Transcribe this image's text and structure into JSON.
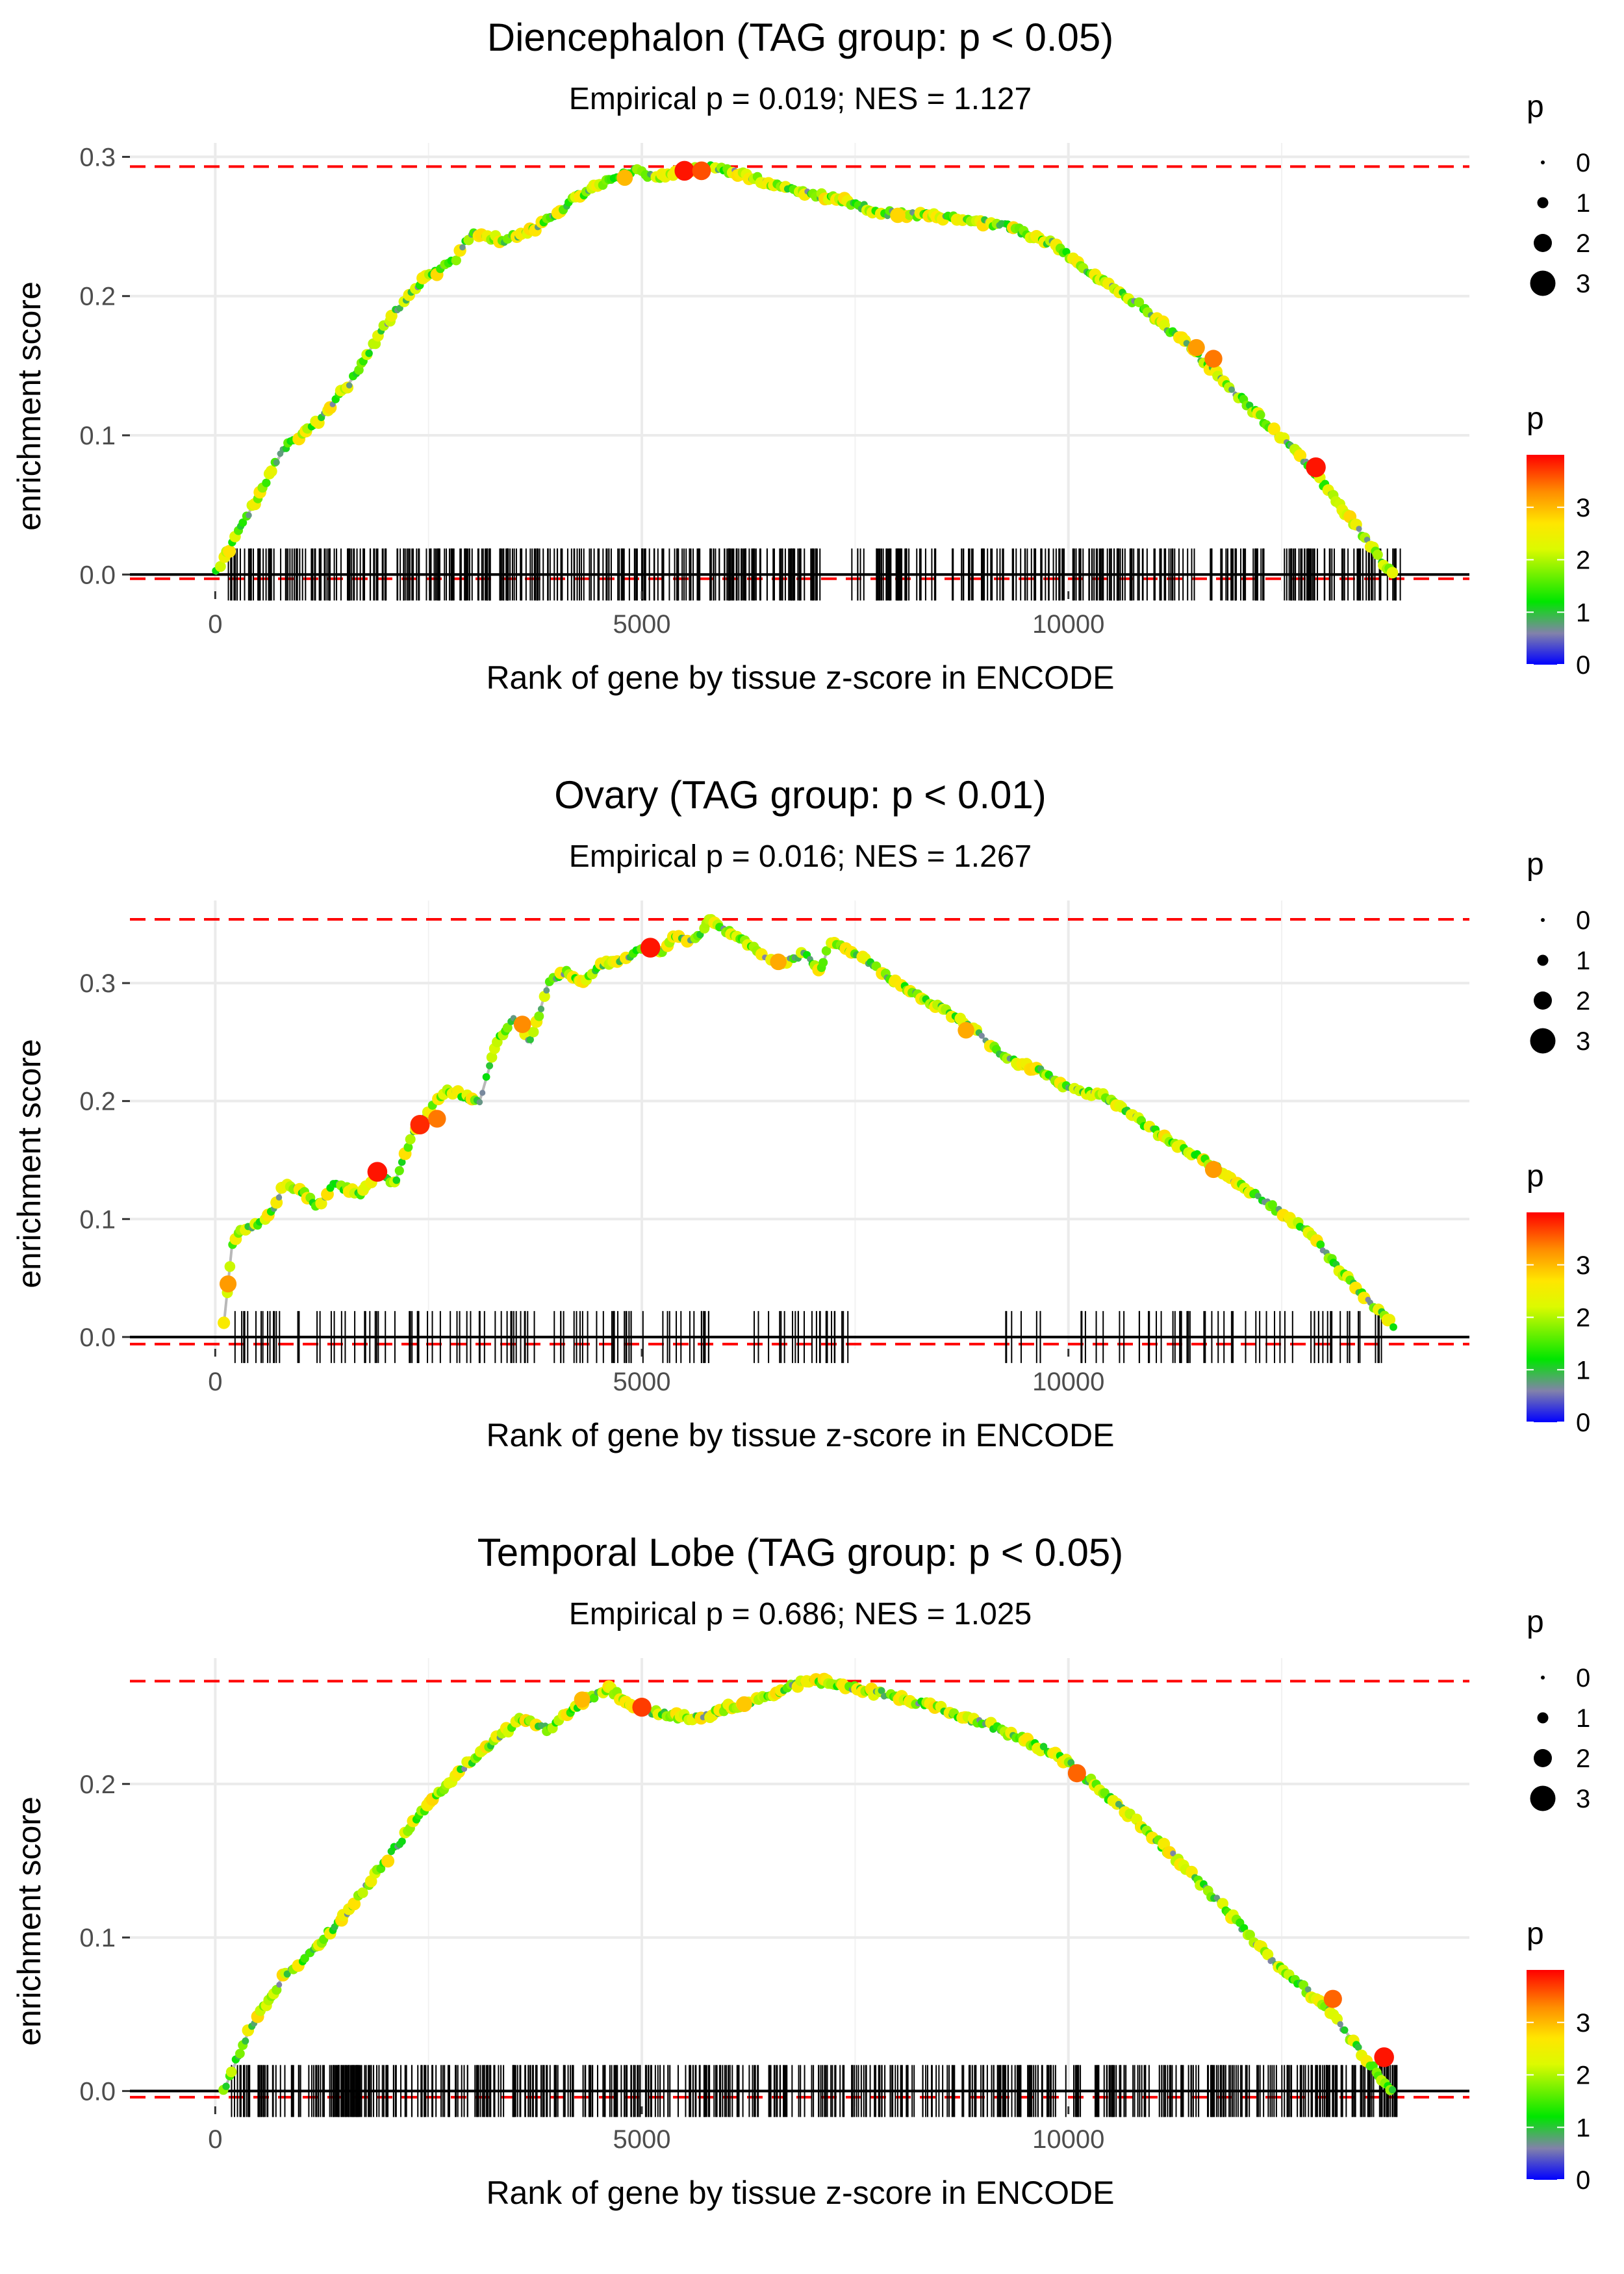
{
  "chart_data": [
    {
      "type": "line",
      "title": "Diencephalon (TAG group: p < 0.05)",
      "subtitle": "Empirical p = 0.019; NES = 1.127",
      "xlabel": "Rank of gene by tissue z-score in ENCODE",
      "ylabel": "enrichment score",
      "xlim": [
        -1000,
        14700
      ],
      "ylim": [
        -0.012,
        0.31
      ],
      "x_ticks": [
        0,
        5000,
        10000
      ],
      "x_tick_labels": [
        "0",
        "5000",
        "10000"
      ],
      "y_ticks": [
        0.0,
        0.1,
        0.2,
        0.3
      ],
      "y_tick_labels": [
        "0.0",
        "0.1",
        "0.2",
        "0.3"
      ],
      "grid": true,
      "max_es": 0.293,
      "min_es": -0.003,
      "curve_x": [
        0,
        400,
        800,
        1200,
        1600,
        2000,
        2400,
        2800,
        3000,
        3400,
        3800,
        4200,
        4600,
        4900,
        5200,
        5500,
        5800,
        6300,
        6800,
        7300,
        7800,
        8300,
        8800,
        9300,
        9800,
        10300,
        10800,
        11300,
        11800,
        12300,
        12800,
        13300,
        13800
      ],
      "curve_y": [
        0.0,
        0.045,
        0.09,
        0.11,
        0.14,
        0.18,
        0.21,
        0.225,
        0.245,
        0.24,
        0.25,
        0.27,
        0.283,
        0.29,
        0.285,
        0.29,
        0.293,
        0.285,
        0.275,
        0.27,
        0.26,
        0.258,
        0.255,
        0.25,
        0.238,
        0.215,
        0.195,
        0.17,
        0.14,
        0.11,
        0.08,
        0.04,
        0.0
      ],
      "highlight_points": [
        {
          "x": 5500,
          "y": 0.29,
          "p": 3.9
        },
        {
          "x": 5700,
          "y": 0.29,
          "p": 3.6
        },
        {
          "x": 4800,
          "y": 0.285,
          "p": 3.0
        },
        {
          "x": 11500,
          "y": 0.163,
          "p": 3.2
        },
        {
          "x": 11700,
          "y": 0.155,
          "p": 3.4
        },
        {
          "x": 12900,
          "y": 0.077,
          "p": 3.9
        },
        {
          "x": 8000,
          "y": 0.258,
          "p": 2.8
        }
      ],
      "rug": {
        "start": 150,
        "end": 13900,
        "count": 560,
        "gap_ranges": [
          [
            7200,
            7400
          ],
          [
            12300,
            12500
          ]
        ]
      },
      "legend_size": {
        "title": "p",
        "labels": [
          "0",
          "1",
          "2",
          "3"
        ]
      },
      "legend_color": {
        "title": "p",
        "labels": [
          "3",
          "2",
          "1",
          "0"
        ],
        "values": [
          3,
          2,
          1,
          0
        ],
        "range": [
          0,
          4
        ]
      }
    },
    {
      "type": "line",
      "title": "Ovary (TAG group: p < 0.01)",
      "subtitle": "Empirical p = 0.016; NES = 1.267",
      "xlabel": "Rank of gene by tissue z-score in ENCODE",
      "ylabel": "enrichment score",
      "xlim": [
        -1000,
        14700
      ],
      "ylim": [
        -0.01,
        0.37
      ],
      "x_ticks": [
        0,
        5000,
        10000
      ],
      "x_tick_labels": [
        "0",
        "5000",
        "10000"
      ],
      "y_ticks": [
        0.0,
        0.1,
        0.2,
        0.3
      ],
      "y_tick_labels": [
        "0.0",
        "0.1",
        "0.2",
        "0.3"
      ],
      "grid": true,
      "max_es": 0.354,
      "min_es": -0.006,
      "curve_x": [
        100,
        200,
        300,
        500,
        700,
        800,
        1000,
        1200,
        1400,
        1700,
        1900,
        2100,
        2300,
        2500,
        2700,
        3100,
        3300,
        3500,
        3700,
        3900,
        4100,
        4300,
        4500,
        4800,
        5000,
        5200,
        5400,
        5600,
        5800,
        6300,
        6600,
        6900,
        7100,
        7200,
        7500,
        8000,
        8600,
        8900,
        9300,
        9700,
        10000,
        10400,
        10800,
        11200,
        11600,
        12000,
        12400,
        12800,
        13200,
        13600,
        13800
      ],
      "curve_y": [
        0.01,
        0.08,
        0.09,
        0.095,
        0.11,
        0.13,
        0.125,
        0.11,
        0.13,
        0.12,
        0.14,
        0.13,
        0.17,
        0.19,
        0.21,
        0.2,
        0.25,
        0.27,
        0.25,
        0.3,
        0.31,
        0.3,
        0.315,
        0.32,
        0.33,
        0.325,
        0.34,
        0.335,
        0.354,
        0.33,
        0.315,
        0.325,
        0.31,
        0.335,
        0.325,
        0.3,
        0.275,
        0.26,
        0.235,
        0.225,
        0.21,
        0.205,
        0.185,
        0.165,
        0.15,
        0.13,
        0.11,
        0.09,
        0.055,
        0.025,
        0.01
      ],
      "highlight_points": [
        {
          "x": 150,
          "y": 0.045,
          "p": 3.2
        },
        {
          "x": 1900,
          "y": 0.14,
          "p": 3.9
        },
        {
          "x": 2400,
          "y": 0.18,
          "p": 3.8
        },
        {
          "x": 2600,
          "y": 0.185,
          "p": 3.4
        },
        {
          "x": 3600,
          "y": 0.265,
          "p": 3.3
        },
        {
          "x": 5100,
          "y": 0.33,
          "p": 3.9
        },
        {
          "x": 6600,
          "y": 0.318,
          "p": 3.1
        },
        {
          "x": 8800,
          "y": 0.26,
          "p": 3.1
        },
        {
          "x": 11700,
          "y": 0.142,
          "p": 3.2
        }
      ],
      "rug": {
        "start": 150,
        "end": 13700,
        "count": 190,
        "gap_ranges": [
          [
            5800,
            6300
          ],
          [
            7500,
            9100
          ],
          [
            9700,
            10100
          ]
        ]
      },
      "legend_size": {
        "title": "p",
        "labels": [
          "0",
          "1",
          "2",
          "3"
        ]
      },
      "legend_color": {
        "title": "p",
        "labels": [
          "3",
          "2",
          "1",
          "0"
        ],
        "values": [
          3,
          2,
          1,
          0
        ],
        "range": [
          0,
          4
        ]
      }
    },
    {
      "type": "line",
      "title": "Temporal Lobe (TAG group: p < 0.05)",
      "subtitle": "Empirical p = 0.686; NES = 1.025",
      "xlabel": "Rank of gene by tissue z-score in ENCODE",
      "ylabel": "enrichment score",
      "xlim": [
        -1000,
        14700
      ],
      "ylim": [
        -0.01,
        0.282
      ],
      "x_ticks": [
        0,
        5000,
        10000
      ],
      "x_tick_labels": [
        "0",
        "5000",
        "10000"
      ],
      "y_ticks": [
        0.0,
        0.1,
        0.2
      ],
      "y_tick_labels": [
        "0.0",
        "0.1",
        "0.2"
      ],
      "grid": true,
      "max_es": 0.267,
      "min_es": -0.004,
      "curve_x": [
        100,
        400,
        800,
        1200,
        1600,
        2000,
        2400,
        2800,
        3200,
        3600,
        3900,
        4200,
        4600,
        4900,
        5300,
        5700,
        6000,
        6400,
        6800,
        7100,
        7500,
        7900,
        8300,
        8700,
        9100,
        9500,
        9900,
        10300,
        10700,
        11100,
        11500,
        11900,
        12300,
        12700,
        13100,
        13500,
        13800
      ],
      "curve_y": [
        0.0,
        0.04,
        0.075,
        0.095,
        0.12,
        0.15,
        0.18,
        0.205,
        0.225,
        0.243,
        0.235,
        0.25,
        0.263,
        0.25,
        0.245,
        0.243,
        0.25,
        0.255,
        0.265,
        0.267,
        0.262,
        0.258,
        0.252,
        0.245,
        0.238,
        0.228,
        0.218,
        0.2,
        0.18,
        0.16,
        0.138,
        0.115,
        0.09,
        0.07,
        0.05,
        0.02,
        0.0
      ],
      "highlight_points": [
        {
          "x": 5000,
          "y": 0.25,
          "p": 3.7
        },
        {
          "x": 10100,
          "y": 0.207,
          "p": 3.5
        },
        {
          "x": 13100,
          "y": 0.06,
          "p": 3.5
        },
        {
          "x": 13700,
          "y": 0.022,
          "p": 3.9
        },
        {
          "x": 4300,
          "y": 0.255,
          "p": 3.0
        },
        {
          "x": 6200,
          "y": 0.252,
          "p": 2.9
        }
      ],
      "rug": {
        "start": 150,
        "end": 13900,
        "count": 600,
        "gap_ranges": []
      },
      "legend_size": {
        "title": "p",
        "labels": [
          "0",
          "1",
          "2",
          "3"
        ]
      },
      "legend_color": {
        "title": "p",
        "labels": [
          "3",
          "2",
          "1",
          "0"
        ],
        "values": [
          3,
          2,
          1,
          0
        ],
        "range": [
          0,
          4
        ]
      }
    }
  ]
}
